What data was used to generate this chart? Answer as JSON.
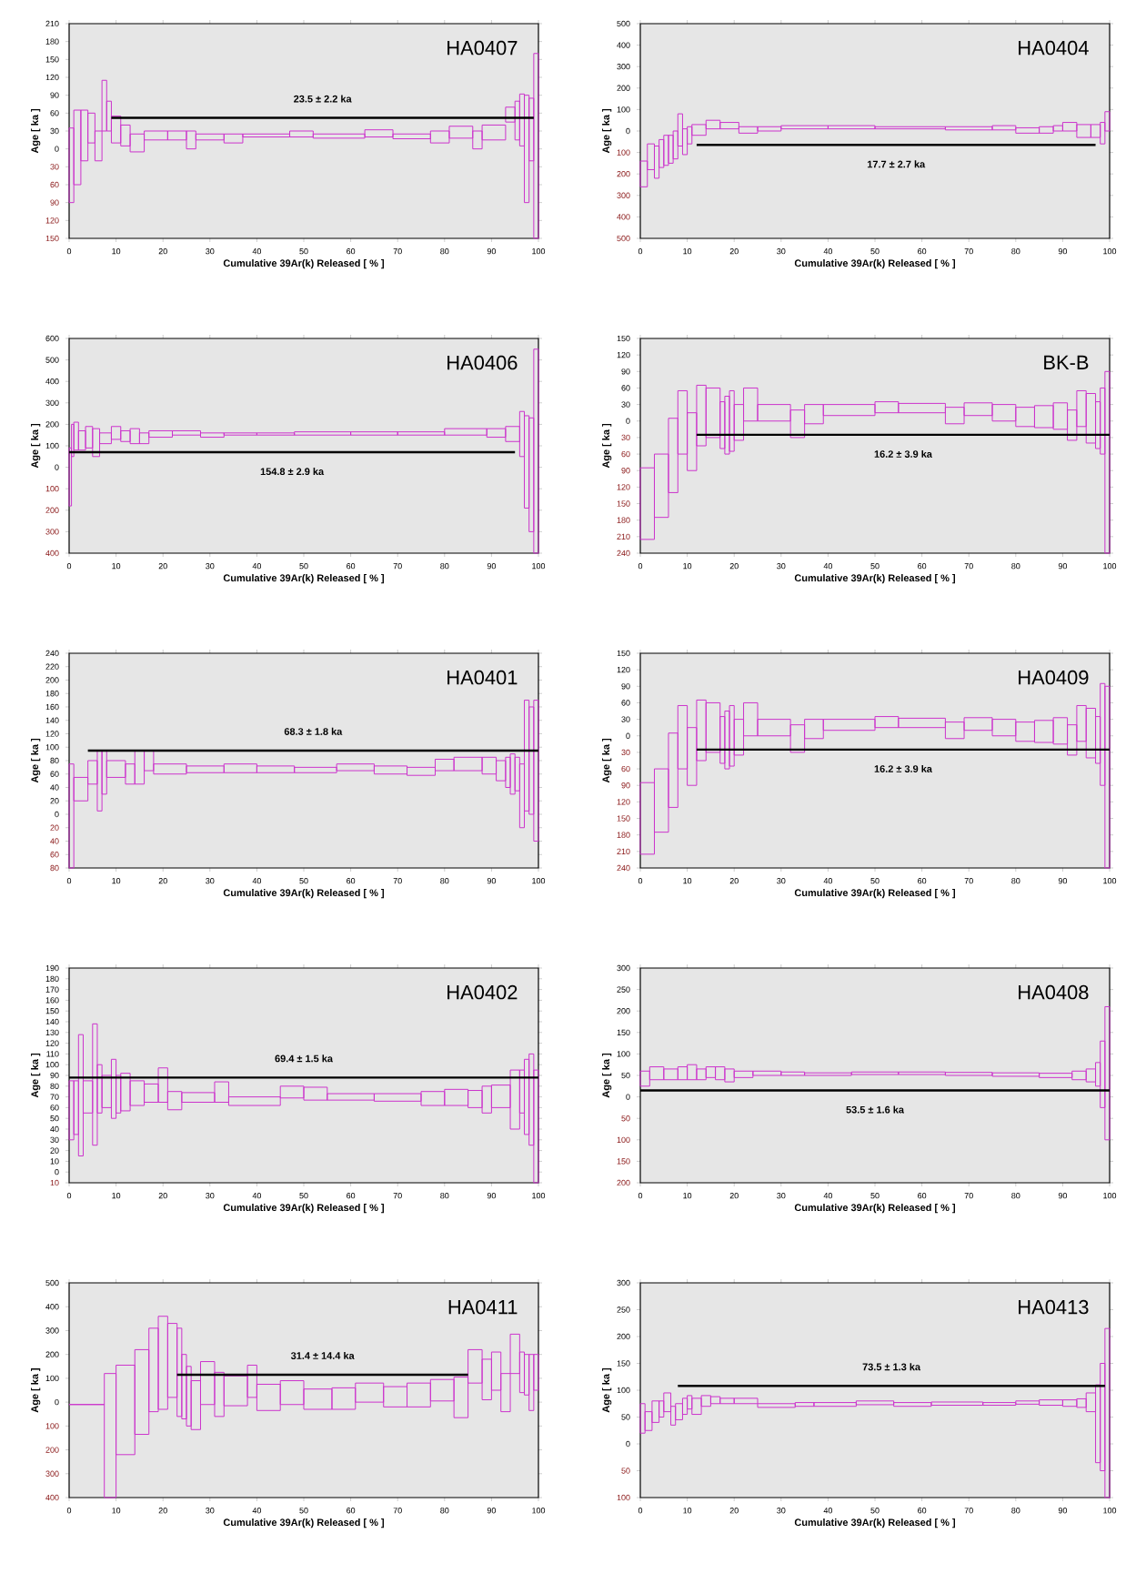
{
  "chart_data": [
    {
      "type": "bar",
      "title": "HA0407",
      "xlabel": "Cumulative 39Ar(k) Released [ % ]",
      "ylabel": "Age [ ka ]",
      "xlim": [
        0,
        100
      ],
      "xticks": [
        0,
        10,
        20,
        30,
        40,
        50,
        60,
        70,
        80,
        90,
        100
      ],
      "ylim": [
        -150,
        210
      ],
      "yticks": [
        {
          "value": -150,
          "label": "150"
        },
        {
          "value": -120,
          "label": "120"
        },
        {
          "value": -90,
          "label": "90"
        },
        {
          "value": -60,
          "label": "60"
        },
        {
          "value": -30,
          "label": "30"
        },
        0,
        30,
        60,
        90,
        120,
        150,
        180,
        210
      ],
      "series": [
        {
          "color": "#cc33cc",
          "x": [
            0.5,
            1.75,
            3.25,
            4.75,
            6.25,
            7.5,
            8.5,
            10,
            12,
            14.5,
            18.5,
            23,
            26,
            30,
            35,
            42,
            49.5,
            57.5,
            66,
            73,
            79,
            83.5,
            87,
            90.5,
            94,
            95.5,
            96.5,
            97.5,
            98.5,
            99.5
          ],
          "base": [
            -90,
            -60,
            -20,
            10,
            -20,
            30,
            30,
            10,
            5,
            -5,
            15,
            15,
            0,
            15,
            10,
            20,
            20,
            18,
            20,
            17,
            10,
            18,
            0,
            15,
            45,
            15,
            5,
            -90,
            -20,
            -150
          ],
          "values": [
            125,
            125,
            85,
            50,
            50,
            85,
            50,
            45,
            35,
            30,
            15,
            15,
            30,
            10,
            15,
            5,
            10,
            7,
            12,
            8,
            20,
            20,
            30,
            25,
            25,
            65,
            87,
            180,
            105,
            310
          ]
        },
        {
          "type": "line",
          "color": "#000000",
          "x": [
            9,
            99
          ],
          "values": [
            52,
            52
          ]
        }
      ],
      "annotations": [
        "23.5 ± 2.2 ka"
      ]
    },
    {
      "type": "bar",
      "title": "HA0404",
      "xlabel": "Cumulative 39Ar(k) Released [ % ]",
      "ylabel": "Age [ ka ]",
      "xlim": [
        0,
        100
      ],
      "xticks": [
        0,
        10,
        20,
        30,
        40,
        50,
        60,
        70,
        80,
        90,
        100
      ],
      "ylim": [
        -500,
        500
      ],
      "yticks": [
        {
          "value": -500,
          "label": "500"
        },
        {
          "value": -400,
          "label": "400"
        },
        {
          "value": -300,
          "label": "300"
        },
        {
          "value": -200,
          "label": "200"
        },
        {
          "value": -100,
          "label": "100"
        },
        0,
        100,
        200,
        300,
        400,
        500
      ],
      "series": [
        {
          "color": "#cc33cc",
          "x": [
            0.75,
            2.25,
            3.5,
            4.5,
            5.5,
            6.5,
            7.5,
            8.5,
            9.5,
            10.5,
            12.5,
            15.5,
            19,
            23,
            27.5,
            35,
            45,
            57.5,
            70,
            77.5,
            82.5,
            86.5,
            89,
            91.5,
            94.5,
            97,
            98.5,
            99.5
          ],
          "base": [
            -260,
            -180,
            -220,
            -170,
            -160,
            -150,
            -130,
            -70,
            -110,
            -60,
            -20,
            10,
            10,
            -10,
            0,
            10,
            10,
            10,
            5,
            5,
            -10,
            -10,
            0,
            0,
            -30,
            -30,
            -60,
            0
          ],
          "values": [
            120,
            120,
            150,
            130,
            140,
            130,
            130,
            150,
            120,
            80,
            50,
            40,
            30,
            30,
            20,
            15,
            15,
            10,
            15,
            20,
            25,
            30,
            25,
            40,
            60,
            60,
            100,
            90
          ]
        },
        {
          "type": "line",
          "color": "#000000",
          "x": [
            12,
            97
          ],
          "values": [
            -65,
            -65
          ]
        }
      ],
      "annotations": [
        "17.7 ± 2.7 ka"
      ]
    },
    {
      "type": "bar",
      "title": "HA0406",
      "xlabel": "Cumulative 39Ar(k) Released [ % ]",
      "ylabel": "Age [ ka ]",
      "xlim": [
        0,
        100
      ],
      "xticks": [
        0,
        10,
        20,
        30,
        40,
        50,
        60,
        70,
        80,
        90,
        100
      ],
      "ylim": [
        -400,
        600
      ],
      "yticks": [
        {
          "value": -400,
          "label": "400"
        },
        {
          "value": -300,
          "label": "300"
        },
        {
          "value": -200,
          "label": "200"
        },
        {
          "value": -100,
          "label": "100"
        },
        0,
        100,
        200,
        300,
        400,
        500,
        600
      ],
      "series": [
        {
          "color": "#cc33cc",
          "x": [
            0.25,
            0.75,
            1.5,
            2.75,
            4.25,
            5.75,
            7.75,
            10,
            12,
            14,
            16,
            19.5,
            25,
            30.5,
            36.5,
            44,
            54,
            65,
            75,
            84.5,
            91,
            94.5,
            96.5,
            97.5,
            98.5,
            99.5
          ],
          "base": [
            -180,
            50,
            80,
            80,
            90,
            50,
            110,
            130,
            120,
            110,
            110,
            140,
            150,
            140,
            150,
            150,
            150,
            150,
            150,
            150,
            140,
            120,
            50,
            -190,
            -300,
            -400
          ],
          "values": [
            270,
            150,
            130,
            90,
            100,
            130,
            50,
            60,
            50,
            70,
            50,
            30,
            20,
            20,
            10,
            10,
            15,
            15,
            15,
            30,
            40,
            70,
            210,
            430,
            530,
            950
          ]
        },
        {
          "type": "line",
          "color": "#000000",
          "x": [
            0,
            95
          ],
          "values": [
            70,
            70
          ]
        }
      ],
      "annotations": [
        "154.8 ± 2.9 ka"
      ]
    },
    {
      "type": "bar",
      "title": "BK-B",
      "xlabel": "Cumulative 39Ar(k) Released [ % ]",
      "ylabel": "Age [ ka ]",
      "xlim": [
        0,
        100
      ],
      "xticks": [
        0,
        10,
        20,
        30,
        40,
        50,
        60,
        70,
        80,
        90,
        100
      ],
      "ylim": [
        -240,
        150
      ],
      "yticks": [
        {
          "value": -240,
          "label": "240"
        },
        {
          "value": -210,
          "label": "210"
        },
        {
          "value": -180,
          "label": "180"
        },
        {
          "value": -150,
          "label": "150"
        },
        {
          "value": -120,
          "label": "120"
        },
        {
          "value": -90,
          "label": "90"
        },
        {
          "value": -60,
          "label": "60"
        },
        {
          "value": -30,
          "label": "30"
        },
        0,
        30,
        60,
        90,
        120,
        150
      ],
      "series": [
        {
          "color": "#cc33cc",
          "x": [
            1.5,
            4.5,
            7,
            9,
            11,
            13,
            15.5,
            17.5,
            18.5,
            19.5,
            21,
            23.5,
            28.5,
            33.5,
            37,
            44.5,
            52.5,
            60,
            67,
            72,
            77.5,
            82,
            86,
            89.5,
            92,
            94,
            96,
            97.5,
            98.5,
            99.5
          ],
          "base": [
            -215,
            -175,
            -130,
            -60,
            -90,
            -45,
            -30,
            -50,
            -60,
            -55,
            -35,
            0,
            0,
            -30,
            -5,
            10,
            15,
            15,
            -5,
            10,
            0,
            -10,
            -12,
            -15,
            -35,
            -10,
            -40,
            -50,
            -60,
            -240
          ],
          "values": [
            130,
            115,
            135,
            115,
            105,
            110,
            90,
            85,
            105,
            110,
            65,
            60,
            30,
            50,
            35,
            20,
            20,
            17,
            30,
            23,
            30,
            35,
            40,
            48,
            55,
            65,
            90,
            85,
            120,
            330
          ]
        },
        {
          "type": "line",
          "color": "#000000",
          "x": [
            12,
            100
          ],
          "values": [
            -25,
            -25
          ]
        }
      ],
      "annotations": [
        "16.2 ± 3.9 ka"
      ]
    },
    {
      "type": "bar",
      "title": "HA0401",
      "xlabel": "Cumulative 39Ar(k) Released [ % ]",
      "ylabel": "Age [ ka ]",
      "xlim": [
        0,
        100
      ],
      "xticks": [
        0,
        10,
        20,
        30,
        40,
        50,
        60,
        70,
        80,
        90,
        100
      ],
      "ylim": [
        -80,
        240
      ],
      "yticks": [
        {
          "value": -80,
          "label": "80"
        },
        {
          "value": -60,
          "label": "60"
        },
        {
          "value": -40,
          "label": "40"
        },
        {
          "value": -20,
          "label": "20"
        },
        0,
        20,
        40,
        60,
        80,
        100,
        120,
        140,
        160,
        180,
        200,
        220,
        240
      ],
      "series": [
        {
          "color": "#cc33cc",
          "x": [
            0.5,
            2.5,
            5,
            6.5,
            7.5,
            10,
            13,
            15,
            17,
            21.5,
            29,
            36.5,
            44,
            52.5,
            61,
            68.5,
            75,
            80,
            85,
            89.5,
            92,
            93.5,
            94.5,
            95.5,
            96.5,
            97.5,
            98.5,
            99.5
          ],
          "base": [
            -80,
            20,
            45,
            5,
            30,
            55,
            45,
            45,
            65,
            60,
            62,
            62,
            62,
            62,
            65,
            60,
            58,
            65,
            65,
            60,
            50,
            40,
            30,
            35,
            -20,
            5,
            0,
            -40
          ],
          "values": [
            155,
            35,
            35,
            90,
            65,
            25,
            30,
            50,
            30,
            15,
            10,
            13,
            10,
            8,
            10,
            12,
            12,
            17,
            20,
            25,
            30,
            45,
            60,
            50,
            95,
            165,
            160,
            210
          ]
        },
        {
          "type": "line",
          "color": "#000000",
          "x": [
            4,
            100
          ],
          "values": [
            95,
            95
          ]
        }
      ],
      "annotations": [
        "68.3 ± 1.8 ka"
      ]
    },
    {
      "type": "bar",
      "title": "HA0409",
      "xlabel": "Cumulative 39Ar(k) Released [ % ]",
      "ylabel": "Age [ ka ]",
      "xlim": [
        0,
        100
      ],
      "xticks": [
        0,
        10,
        20,
        30,
        40,
        50,
        60,
        70,
        80,
        90,
        100
      ],
      "ylim": [
        -240,
        150
      ],
      "yticks": [
        {
          "value": -240,
          "label": "240"
        },
        {
          "value": -210,
          "label": "210"
        },
        {
          "value": -180,
          "label": "180"
        },
        {
          "value": -150,
          "label": "150"
        },
        {
          "value": -120,
          "label": "120"
        },
        {
          "value": -90,
          "label": "90"
        },
        {
          "value": -60,
          "label": "60"
        },
        {
          "value": -30,
          "label": "30"
        },
        0,
        30,
        60,
        90,
        120,
        150
      ],
      "series": [
        {
          "color": "#cc33cc",
          "x": [
            1.5,
            4.5,
            7,
            9,
            11,
            13,
            15.5,
            17.5,
            18.5,
            19.5,
            21,
            23.5,
            28.5,
            33.5,
            37,
            44.5,
            52.5,
            60,
            67,
            72,
            77.5,
            82,
            86,
            89.5,
            92,
            94,
            96,
            97.5,
            98.5,
            99.5
          ],
          "base": [
            -215,
            -175,
            -130,
            -60,
            -90,
            -45,
            -30,
            -50,
            -60,
            -55,
            -35,
            0,
            0,
            -30,
            -5,
            10,
            15,
            15,
            -5,
            10,
            0,
            -10,
            -12,
            -15,
            -35,
            -10,
            -40,
            -50,
            -90,
            -240
          ],
          "values": [
            130,
            115,
            135,
            115,
            105,
            110,
            90,
            85,
            105,
            110,
            65,
            60,
            30,
            50,
            35,
            20,
            20,
            17,
            30,
            23,
            30,
            35,
            40,
            48,
            55,
            65,
            90,
            85,
            185,
            330
          ]
        },
        {
          "type": "line",
          "color": "#000000",
          "x": [
            12,
            100
          ],
          "values": [
            -25,
            -25
          ]
        }
      ],
      "annotations": [
        "16.2 ± 3.9 ka"
      ]
    },
    {
      "type": "bar",
      "title": "HA0402",
      "xlabel": "Cumulative 39Ar(k) Released [ % ]",
      "ylabel": "Age [ ka ]",
      "xlim": [
        0,
        100
      ],
      "xticks": [
        0,
        10,
        20,
        30,
        40,
        50,
        60,
        70,
        80,
        90,
        100
      ],
      "ylim": [
        -10,
        190
      ],
      "yticks": [
        {
          "value": -10,
          "label": "10"
        },
        0,
        10,
        20,
        30,
        40,
        50,
        60,
        70,
        80,
        90,
        100,
        110,
        120,
        130,
        140,
        150,
        160,
        170,
        180,
        190
      ],
      "series": [
        {
          "color": "#cc33cc",
          "x": [
            0.5,
            1.5,
            2.5,
            4,
            5.5,
            6.5,
            8,
            9.5,
            10.5,
            12,
            14.5,
            17.5,
            20,
            22.5,
            27.5,
            32.5,
            39.5,
            47.5,
            52.5,
            60,
            70,
            77.5,
            82.5,
            86.5,
            89,
            92,
            95,
            96.5,
            97.5,
            98.5,
            99.5
          ],
          "base": [
            30,
            35,
            15,
            55,
            25,
            55,
            60,
            50,
            55,
            57,
            62,
            65,
            65,
            58,
            65,
            65,
            62,
            69,
            67,
            67,
            66,
            62,
            62,
            60,
            55,
            60,
            40,
            55,
            35,
            25,
            -10
          ],
          "values": [
            55,
            50,
            113,
            30,
            113,
            45,
            30,
            55,
            35,
            35,
            23,
            17,
            32,
            17,
            9,
            19,
            8,
            11,
            12,
            6,
            7,
            13,
            15,
            16,
            25,
            21,
            55,
            40,
            70,
            85,
            105
          ]
        },
        {
          "type": "line",
          "color": "#000000",
          "x": [
            0,
            100
          ],
          "values": [
            88,
            88
          ]
        }
      ],
      "annotations": [
        "69.4 ± 1.5 ka"
      ]
    },
    {
      "type": "bar",
      "title": "HA0408",
      "xlabel": "Cumulative 39Ar(k) Released [ % ]",
      "ylabel": "Age [ ka ]",
      "xlim": [
        0,
        100
      ],
      "xticks": [
        0,
        10,
        20,
        30,
        40,
        50,
        60,
        70,
        80,
        90,
        100
      ],
      "ylim": [
        -200,
        300
      ],
      "yticks": [
        {
          "value": -200,
          "label": "200"
        },
        {
          "value": -150,
          "label": "150"
        },
        {
          "value": -100,
          "label": "100"
        },
        {
          "value": -50,
          "label": "50"
        },
        0,
        50,
        100,
        150,
        200,
        250,
        300
      ],
      "series": [
        {
          "color": "#cc33cc",
          "x": [
            1,
            3.5,
            6.5,
            9,
            11,
            13,
            15,
            17,
            19,
            22,
            27,
            32.5,
            40,
            50,
            60,
            70,
            80,
            88.5,
            93.5,
            96,
            97.5,
            98.5,
            99.5
          ],
          "base": [
            25,
            40,
            40,
            40,
            40,
            40,
            45,
            40,
            35,
            45,
            50,
            50,
            50,
            52,
            52,
            50,
            48,
            45,
            40,
            35,
            25,
            -25,
            -100
          ],
          "values": [
            35,
            30,
            25,
            30,
            35,
            25,
            25,
            30,
            30,
            15,
            10,
            8,
            6,
            6,
            6,
            7,
            8,
            10,
            20,
            30,
            55,
            155,
            310
          ]
        },
        {
          "type": "line",
          "color": "#000000",
          "x": [
            0,
            100
          ],
          "values": [
            15,
            15
          ]
        }
      ],
      "annotations": [
        "53.5 ± 1.6 ka"
      ]
    },
    {
      "type": "bar",
      "title": "HA0411",
      "xlabel": "Cumulative 39Ar(k) Released [ % ]",
      "ylabel": "Age [ ka ]",
      "xlim": [
        0,
        100
      ],
      "xticks": [
        0,
        10,
        20,
        30,
        40,
        50,
        60,
        70,
        80,
        90,
        100
      ],
      "ylim": [
        -400,
        500
      ],
      "yticks": [
        {
          "value": -400,
          "label": "400"
        },
        {
          "value": -300,
          "label": "300"
        },
        {
          "value": -200,
          "label": "200"
        },
        {
          "value": -100,
          "label": "100"
        },
        0,
        100,
        200,
        300,
        400,
        500
      ],
      "series": [
        {
          "color": "#cc33cc",
          "x": [
            3.75,
            8.75,
            12,
            15.5,
            18,
            20,
            22,
            23.5,
            24.5,
            25.5,
            27,
            29.5,
            32,
            35.5,
            39,
            42.5,
            47.5,
            53,
            58.5,
            64,
            69.5,
            74.5,
            79.5,
            83.5,
            86.5,
            89,
            91,
            93,
            95,
            96.5,
            97.5,
            98.5,
            99.5
          ],
          "base": [
            -10,
            -400,
            -220,
            -135,
            -40,
            -30,
            20,
            -60,
            -70,
            -100,
            -115,
            -10,
            -60,
            -15,
            20,
            -35,
            -10,
            -30,
            -30,
            0,
            -20,
            -20,
            5,
            -65,
            80,
            10,
            50,
            -40,
            120,
            40,
            30,
            -35,
            50
          ],
          "values": [
            0,
            520,
            375,
            355,
            350,
            390,
            310,
            370,
            270,
            250,
            205,
            180,
            185,
            125,
            135,
            110,
            100,
            85,
            90,
            80,
            85,
            100,
            90,
            170,
            140,
            170,
            160,
            160,
            165,
            170,
            170,
            235,
            150
          ]
        },
        {
          "type": "line",
          "color": "#000000",
          "x": [
            23,
            85
          ],
          "values": [
            115,
            115
          ]
        }
      ],
      "annotations": [
        "31.4 ± 14.4 ka"
      ]
    },
    {
      "type": "bar",
      "title": "HA0413",
      "xlabel": "Cumulative 39Ar(k) Released [ % ]",
      "ylabel": "Age [ ka ]",
      "xlim": [
        0,
        100
      ],
      "xticks": [
        0,
        10,
        20,
        30,
        40,
        50,
        60,
        70,
        80,
        90,
        100
      ],
      "ylim": [
        -100,
        300
      ],
      "yticks": [
        {
          "value": -100,
          "label": "100"
        },
        {
          "value": -50,
          "label": "50"
        },
        0,
        50,
        100,
        150,
        200,
        250,
        300
      ],
      "series": [
        {
          "color": "#cc33cc",
          "x": [
            0.5,
            1.75,
            3.25,
            4.5,
            5.75,
            7,
            8.25,
            9.5,
            10.5,
            12,
            14,
            16,
            18.5,
            22.5,
            29,
            35,
            41.5,
            50,
            58,
            67.5,
            76.5,
            82.5,
            87.5,
            91.5,
            94,
            96,
            97.5,
            98.5,
            99.5
          ],
          "base": [
            20,
            25,
            40,
            50,
            60,
            35,
            45,
            55,
            65,
            55,
            70,
            75,
            75,
            75,
            68,
            70,
            70,
            73,
            70,
            72,
            72,
            74,
            72,
            70,
            68,
            60,
            -35,
            -50,
            -100
          ],
          "values": [
            55,
            35,
            40,
            30,
            35,
            35,
            30,
            30,
            25,
            30,
            20,
            13,
            10,
            10,
            7,
            7,
            7,
            7,
            7,
            6,
            5,
            6,
            10,
            12,
            16,
            35,
            145,
            200,
            315
          ]
        },
        {
          "type": "line",
          "color": "#000000",
          "x": [
            8,
            99
          ],
          "values": [
            108,
            108
          ]
        }
      ],
      "annotations": [
        "73.5 ± 1.3 ka"
      ]
    }
  ]
}
